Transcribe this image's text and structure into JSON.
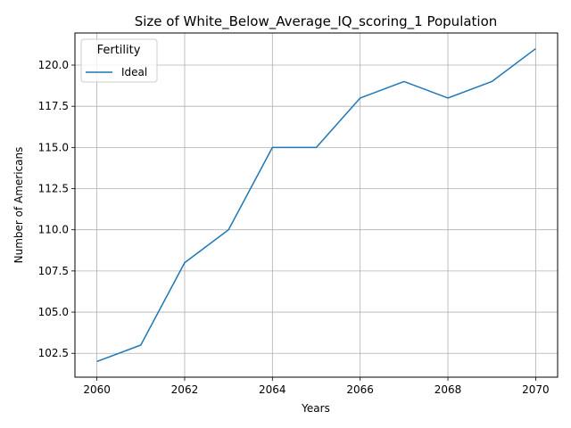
{
  "chart_data": {
    "type": "line",
    "title": "Size of White_Below_Average_IQ_scoring_1 Population",
    "xlabel": "Years",
    "ylabel": "Number of Americans",
    "x": [
      2060,
      2061,
      2062,
      2063,
      2064,
      2065,
      2066,
      2067,
      2068,
      2069,
      2070
    ],
    "series": [
      {
        "name": "Ideal",
        "color": "#1f77b4",
        "values": [
          102,
          103,
          108,
          110,
          115,
          115,
          118,
          119,
          118,
          119,
          121
        ]
      }
    ],
    "xlim": [
      2059.5,
      2070.5
    ],
    "ylim": [
      101.05,
      121.95
    ],
    "xticks": [
      2060,
      2062,
      2064,
      2066,
      2068,
      2070
    ],
    "xtick_labels": [
      "2060",
      "2062",
      "2064",
      "2066",
      "2068",
      "2070"
    ],
    "yticks": [
      102.5,
      105.0,
      107.5,
      110.0,
      112.5,
      115.0,
      117.5,
      120.0
    ],
    "ytick_labels": [
      "102.5",
      "105.0",
      "107.5",
      "110.0",
      "112.5",
      "115.0",
      "117.5",
      "120.0"
    ],
    "grid": true,
    "legend": {
      "title": "Fertility",
      "placement": "upper-left"
    }
  }
}
